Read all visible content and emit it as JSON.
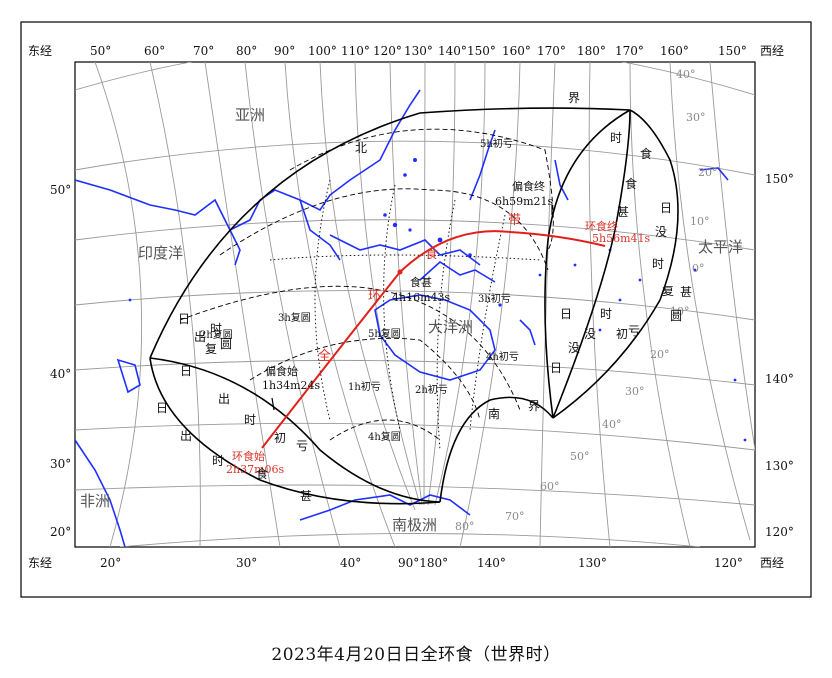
{
  "caption": "2023年4月20日日全环食（世界时）",
  "frame_labels": {
    "top_left": "东经",
    "top_right": "西经",
    "bottom_left": "东经",
    "bottom_right": "西经"
  },
  "top_longitudes": [
    "50°",
    "60°",
    "70°",
    "80°",
    "90°",
    "100°",
    "110°",
    "120°",
    "130°",
    "140°",
    "150°",
    "160°",
    "170°",
    "180°",
    "170°",
    "160°",
    "150°"
  ],
  "bottom_longitudes": [
    "20°",
    "30°",
    "40°",
    "90°180°",
    "140°",
    "130°",
    "120°"
  ],
  "left_latitudes": [
    "50°",
    "40°",
    "30°",
    "20°"
  ],
  "right_latitudes": [
    "150°",
    "140°",
    "130°",
    "120°"
  ],
  "inner_latitude_labels": [
    "40°",
    "30°",
    "20°",
    "10°",
    "0°",
    "10°",
    "20°",
    "30°",
    "40°",
    "50°",
    "60°",
    "70°",
    "80°"
  ],
  "regions": {
    "asia": "亚洲",
    "indian_ocean": "印度洋",
    "pacific_ocean": "太平洋",
    "oceania": "大洋洲",
    "africa": "非洲",
    "antarctica": "南极洲"
  },
  "events": {
    "partial_end_label": "偏食终",
    "partial_end_time": "6h59m21s",
    "annular_end_label": "环食终",
    "annular_end_time": "5h56m41s",
    "max_label": "食甚",
    "max_time": "4h16m43s",
    "partial_start_label": "偏食始",
    "partial_start_time": "1h34m24s",
    "annular_start_label": "环食始",
    "annular_start_time": "2h37m06s"
  },
  "curve_labels": {
    "north_boundary": [
      "北",
      "界"
    ],
    "south_boundary": [
      "南",
      "界"
    ],
    "sunrise": [
      "日",
      "出",
      "时",
      "复",
      "圆"
    ],
    "sunrise_first": [
      "日",
      "出",
      "时",
      "初",
      "亏"
    ],
    "sunset_first": [
      "日",
      "没",
      "时",
      "初",
      "亏"
    ],
    "sunset_end": [
      "日",
      "没",
      "时",
      "复",
      "圆"
    ],
    "sunrise_maximum": [
      "日",
      "出",
      "时",
      "食",
      "甚"
    ],
    "sunset_maximum": [
      "日",
      "没",
      "时",
      "食",
      "甚"
    ],
    "maximum_sunset": [
      "食",
      "甚"
    ],
    "central_band": [
      "全",
      "环",
      "食",
      "带"
    ]
  },
  "isoline_labels": [
    "5h初亏",
    "2h复圆",
    "3h复圆",
    "4h复圆",
    "5h复圆",
    "1h初亏",
    "2h初亏",
    "3h初亏",
    "4h初亏"
  ],
  "colors": {
    "frame": "#000000",
    "graticule": "#9a9a9a",
    "coast": "#1f2fff",
    "path": "#e0201a",
    "event_label": "#d8342a",
    "curve": "#000000"
  },
  "legend": null
}
